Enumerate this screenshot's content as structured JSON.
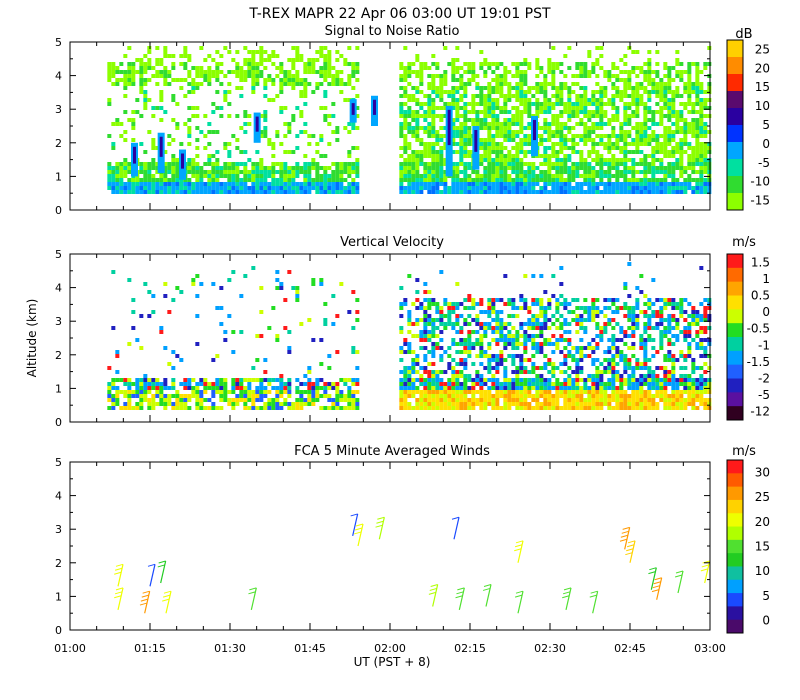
{
  "header": {
    "title": "T-REX  MAPR 22 Apr 06  03:00 UT  19:01  PST"
  },
  "chart_data": [
    {
      "type": "heatmap",
      "title": "Signal to Noise Ratio",
      "ylabel": "",
      "ylim": [
        0,
        5
      ],
      "yticks": [
        "0",
        "1",
        "2",
        "3",
        "4",
        "5"
      ],
      "colorbar": {
        "unit": "dB",
        "ticks": [
          "25",
          "20",
          "15",
          "10",
          "5",
          "0",
          "-5",
          "-10",
          "-15"
        ],
        "colors": [
          "#ffd000",
          "#ff8c00",
          "#ff2a00",
          "#5a0a6e",
          "#2a00a0",
          "#0033ff",
          "#00a6ff",
          "#00e0a0",
          "#30dc30",
          "#8cff00"
        ]
      },
      "series": [
        {
          "name": "gap",
          "x_range": [
            "01:00",
            "03:00"
          ],
          "data_gap": [
            "01:55",
            "02:00"
          ]
        }
      ]
    },
    {
      "type": "heatmap",
      "title": "Vertical Velocity",
      "ylabel": "Altitude (km)",
      "ylim": [
        0,
        5
      ],
      "yticks": [
        "0",
        "1",
        "2",
        "3",
        "4",
        "5"
      ],
      "colorbar": {
        "unit": "m/s",
        "ticks": [
          "1.5",
          "1",
          "0.5",
          "0",
          "-0.5",
          "-1",
          "-1.5",
          "-2",
          "-5",
          "-12"
        ],
        "colors": [
          "#ff1a1a",
          "#ff6a00",
          "#ffa500",
          "#ffe000",
          "#ccff00",
          "#22dd22",
          "#00d0a0",
          "#00a0ff",
          "#2060ff",
          "#2020c0",
          "#5a10a0",
          "#300020"
        ]
      }
    },
    {
      "type": "scatter",
      "title": "FCA 5 Minute Averaged Winds",
      "xlabel": "UT  (PST + 8)",
      "ylim": [
        0,
        5
      ],
      "yticks": [
        "0",
        "1",
        "2",
        "3",
        "4",
        "5"
      ],
      "xticks": [
        "01:00",
        "01:15",
        "01:30",
        "01:45",
        "02:00",
        "02:15",
        "02:30",
        "02:45",
        "03:00"
      ],
      "colorbar": {
        "unit": "m/s",
        "ticks": [
          "30",
          "25",
          "20",
          "15",
          "10",
          "5",
          "0"
        ],
        "colors": [
          "#ff1a1a",
          "#ff5a00",
          "#ff9900",
          "#ffd200",
          "#eeff00",
          "#b0ff00",
          "#50e030",
          "#22cc22",
          "#10c0a0",
          "#00a0ff",
          "#1a4aff",
          "#2a10a0",
          "#4a0a6a"
        ]
      },
      "barbs": [
        {
          "t": "01:09",
          "alt": 0.6,
          "speed": 20
        },
        {
          "t": "01:09",
          "alt": 1.3,
          "speed": 20
        },
        {
          "t": "01:14",
          "alt": 0.5,
          "speed": 24
        },
        {
          "t": "01:17",
          "alt": 1.4,
          "speed": 12
        },
        {
          "t": "01:15",
          "alt": 1.3,
          "speed": 5
        },
        {
          "t": "01:18",
          "alt": 0.5,
          "speed": 20
        },
        {
          "t": "01:34",
          "alt": 0.6,
          "speed": 14
        },
        {
          "t": "01:54",
          "alt": 2.5,
          "speed": 20
        },
        {
          "t": "01:53",
          "alt": 2.8,
          "speed": 5
        },
        {
          "t": "01:58",
          "alt": 2.7,
          "speed": 17
        },
        {
          "t": "02:12",
          "alt": 2.7,
          "speed": 4
        },
        {
          "t": "02:08",
          "alt": 0.7,
          "speed": 17
        },
        {
          "t": "02:13",
          "alt": 0.6,
          "speed": 15
        },
        {
          "t": "02:18",
          "alt": 0.7,
          "speed": 14
        },
        {
          "t": "02:24",
          "alt": 0.5,
          "speed": 14
        },
        {
          "t": "02:24",
          "alt": 2.0,
          "speed": 20
        },
        {
          "t": "02:33",
          "alt": 0.6,
          "speed": 15
        },
        {
          "t": "02:38",
          "alt": 0.5,
          "speed": 14
        },
        {
          "t": "02:44",
          "alt": 2.4,
          "speed": 24
        },
        {
          "t": "02:45",
          "alt": 2.0,
          "speed": 23
        },
        {
          "t": "02:49",
          "alt": 1.2,
          "speed": 13
        },
        {
          "t": "02:50",
          "alt": 0.9,
          "speed": 24
        },
        {
          "t": "02:54",
          "alt": 1.1,
          "speed": 14
        },
        {
          "t": "02:59",
          "alt": 1.4,
          "speed": 20
        }
      ]
    }
  ]
}
